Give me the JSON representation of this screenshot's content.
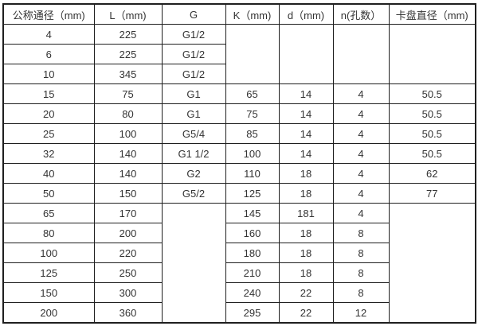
{
  "table": {
    "border_color": "#1f1f1f",
    "text_color": "#333333",
    "background": "#ffffff",
    "headers": [
      "公称通径（mm)",
      "L（mm)",
      "G",
      "K（mm)",
      "d（mm)",
      "n(孔数）",
      "卡盘直径（mm)"
    ],
    "rows": [
      [
        {
          "t": "4"
        },
        {
          "t": "225"
        },
        {
          "t": "G1/2"
        },
        {
          "t": "",
          "rs": 3
        },
        {
          "t": "",
          "rs": 3
        },
        {
          "t": "",
          "rs": 3
        },
        {
          "t": "",
          "rs": 3
        }
      ],
      [
        {
          "t": "6"
        },
        {
          "t": "225"
        },
        {
          "t": "G1/2"
        }
      ],
      [
        {
          "t": "10"
        },
        {
          "t": "345"
        },
        {
          "t": "G1/2"
        }
      ],
      [
        {
          "t": "15"
        },
        {
          "t": "75"
        },
        {
          "t": "G1"
        },
        {
          "t": "65"
        },
        {
          "t": "14"
        },
        {
          "t": "4"
        },
        {
          "t": "50.5"
        }
      ],
      [
        {
          "t": "20"
        },
        {
          "t": "80"
        },
        {
          "t": "G1"
        },
        {
          "t": "75"
        },
        {
          "t": "14"
        },
        {
          "t": "4"
        },
        {
          "t": "50.5"
        }
      ],
      [
        {
          "t": "25"
        },
        {
          "t": "100"
        },
        {
          "t": "G5/4"
        },
        {
          "t": "85"
        },
        {
          "t": "14"
        },
        {
          "t": "4"
        },
        {
          "t": "50.5"
        }
      ],
      [
        {
          "t": "32"
        },
        {
          "t": "140"
        },
        {
          "t": "G1 1/2"
        },
        {
          "t": "100"
        },
        {
          "t": "14"
        },
        {
          "t": "4"
        },
        {
          "t": "50.5"
        }
      ],
      [
        {
          "t": "40"
        },
        {
          "t": "140"
        },
        {
          "t": "G2"
        },
        {
          "t": "110"
        },
        {
          "t": "18"
        },
        {
          "t": "4"
        },
        {
          "t": "62"
        }
      ],
      [
        {
          "t": "50"
        },
        {
          "t": "150"
        },
        {
          "t": "G5/2"
        },
        {
          "t": "125"
        },
        {
          "t": "18"
        },
        {
          "t": "4"
        },
        {
          "t": "77"
        }
      ],
      [
        {
          "t": "65"
        },
        {
          "t": "170"
        },
        {
          "t": "",
          "rs": 6
        },
        {
          "t": "145"
        },
        {
          "t": "181"
        },
        {
          "t": "4"
        },
        {
          "t": "",
          "rs": 6
        }
      ],
      [
        {
          "t": "80"
        },
        {
          "t": "200"
        },
        {
          "t": "160"
        },
        {
          "t": "18"
        },
        {
          "t": "8"
        }
      ],
      [
        {
          "t": "100"
        },
        {
          "t": "220"
        },
        {
          "t": "180"
        },
        {
          "t": "18"
        },
        {
          "t": "8"
        }
      ],
      [
        {
          "t": "125"
        },
        {
          "t": "250"
        },
        {
          "t": "210"
        },
        {
          "t": "18"
        },
        {
          "t": "8"
        }
      ],
      [
        {
          "t": "150"
        },
        {
          "t": "300"
        },
        {
          "t": "240"
        },
        {
          "t": "22"
        },
        {
          "t": "8"
        }
      ],
      [
        {
          "t": "200"
        },
        {
          "t": "360"
        },
        {
          "t": "295"
        },
        {
          "t": "22"
        },
        {
          "t": "12"
        }
      ]
    ]
  }
}
